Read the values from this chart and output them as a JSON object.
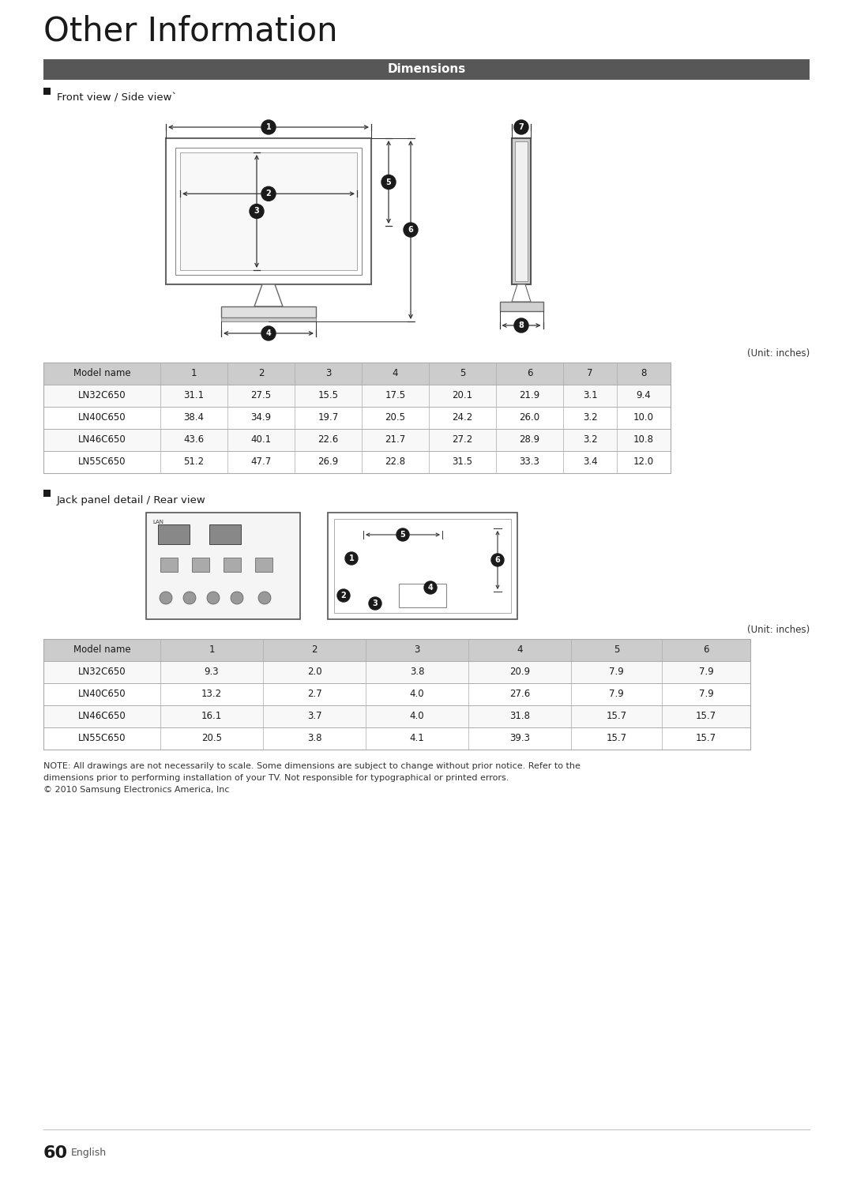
{
  "title": "Other Information",
  "section_header": "Dimensions",
  "section_header_bg": "#575757",
  "section_header_color": "#ffffff",
  "front_view_label": "Front view / Side viewˋ",
  "jack_panel_label": "Jack panel detail / Rear view",
  "unit_label": "(Unit: inches)",
  "table1_headers": [
    "Model name",
    "1",
    "2",
    "3",
    "4",
    "5",
    "6",
    "7",
    "8"
  ],
  "table1_data": [
    [
      "LN32C650",
      "31.1",
      "27.5",
      "15.5",
      "17.5",
      "20.1",
      "21.9",
      "3.1",
      "9.4"
    ],
    [
      "LN40C650",
      "38.4",
      "34.9",
      "19.7",
      "20.5",
      "24.2",
      "26.0",
      "3.2",
      "10.0"
    ],
    [
      "LN46C650",
      "43.6",
      "40.1",
      "22.6",
      "21.7",
      "27.2",
      "28.9",
      "3.2",
      "10.8"
    ],
    [
      "LN55C650",
      "51.2",
      "47.7",
      "26.9",
      "22.8",
      "31.5",
      "33.3",
      "3.4",
      "12.0"
    ]
  ],
  "table2_headers": [
    "Model name",
    "1",
    "2",
    "3",
    "4",
    "5",
    "6"
  ],
  "table2_data": [
    [
      "LN32C650",
      "9.3",
      "2.0",
      "3.8",
      "20.9",
      "7.9",
      "7.9"
    ],
    [
      "LN40C650",
      "13.2",
      "2.7",
      "4.0",
      "27.6",
      "7.9",
      "7.9"
    ],
    [
      "LN46C650",
      "16.1",
      "3.7",
      "4.0",
      "31.8",
      "15.7",
      "15.7"
    ],
    [
      "LN55C650",
      "20.5",
      "3.8",
      "4.1",
      "39.3",
      "15.7",
      "15.7"
    ]
  ],
  "note_text": "NOTE: All drawings are not necessarily to scale. Some dimensions are subject to change without prior notice. Refer to the\ndimensions prior to performing installation of your TV. Not responsible for typographical or printed errors.\n© 2010 Samsung Electronics America, Inc",
  "page_number": "60",
  "page_lang": "English",
  "bg_color": "#ffffff",
  "table_header_bg": "#cccccc",
  "table_border_color": "#aaaaaa",
  "dim_circle_fill": "#1a1a1a",
  "dim_circle_text": "#ffffff"
}
